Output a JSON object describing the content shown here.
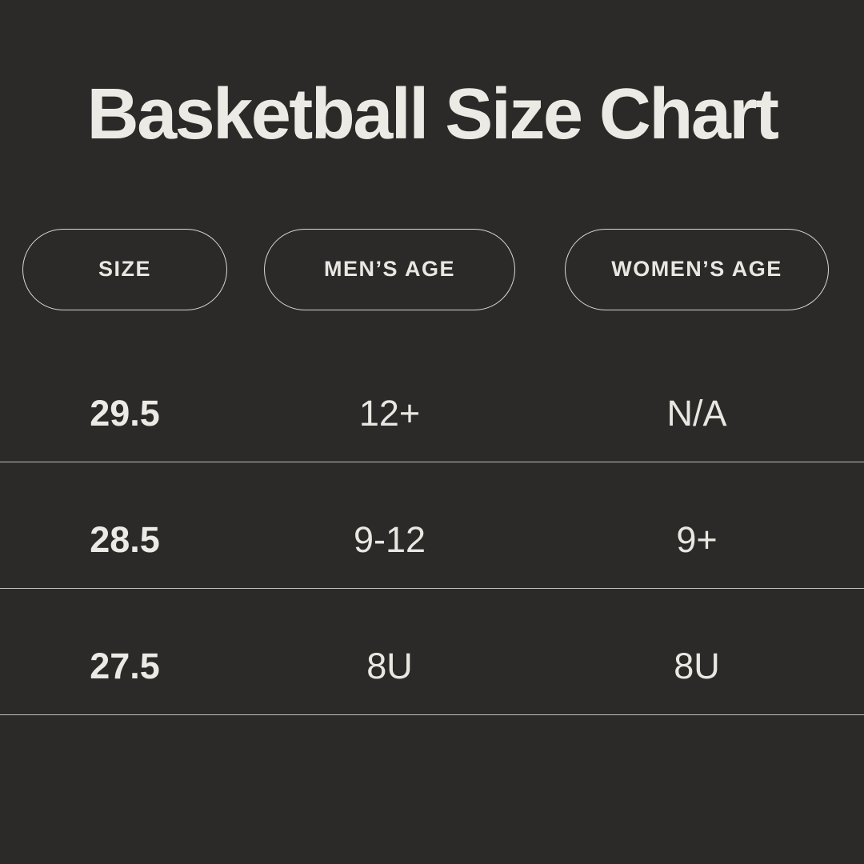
{
  "style": {
    "background_color": "#2b2a28",
    "text_color": "#eceae4",
    "pill_border_color": "#d9d7d1",
    "divider_color": "rgba(236,234,228,0.78)"
  },
  "chart_data": {
    "type": "table",
    "title": "Basketball Size Chart",
    "columns": [
      "SIZE",
      "MEN’S AGE",
      "WOMEN’S AGE"
    ],
    "rows": [
      [
        "29.5",
        "12+",
        "N/A"
      ],
      [
        "28.5",
        "9-12",
        "9+"
      ],
      [
        "27.5",
        "8U",
        "8U"
      ]
    ],
    "layout_hints": {
      "header_style": "outlined-pill",
      "row_dividers": "full-width thin light lines",
      "first_column_bold": true
    }
  }
}
